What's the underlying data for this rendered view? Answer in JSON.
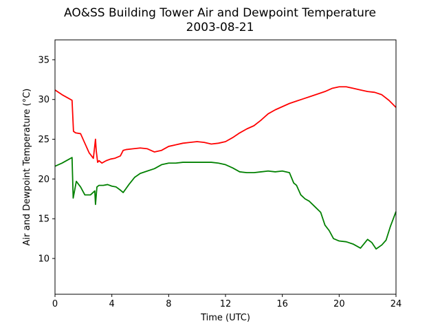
{
  "chart_data": {
    "type": "line",
    "title": "AO&SS Building Tower Air and Dewpoint Temperature",
    "subtitle": "2003-08-21",
    "xlabel": "Time (UTC)",
    "ylabel": "Air and Dewpoint Temperature (°C)",
    "xlim": [
      0,
      24
    ],
    "ylim": [
      5.5,
      37.5
    ],
    "xticks": [
      0,
      4,
      8,
      12,
      16,
      20,
      24
    ],
    "yticks": [
      10,
      15,
      20,
      25,
      30,
      35
    ],
    "grid": false,
    "legend": "none",
    "series": [
      {
        "color": "#ff0000",
        "x": [
          0,
          0.5,
          1.0,
          1.2,
          1.3,
          1.45,
          1.8,
          2.1,
          2.4,
          2.7,
          2.85,
          2.9,
          3.0,
          3.1,
          3.3,
          3.6,
          3.9,
          4.2,
          4.6,
          4.8,
          5.0,
          5.5,
          6.0,
          6.5,
          7.0,
          7.5,
          8.0,
          8.5,
          9.0,
          9.5,
          10.0,
          10.5,
          11.0,
          11.5,
          12.0,
          12.5,
          13.0,
          13.5,
          14.0,
          14.5,
          15.0,
          15.5,
          16.0,
          16.5,
          17.0,
          17.5,
          18.0,
          18.5,
          19.0,
          19.5,
          20.0,
          20.5,
          21.0,
          21.5,
          22.0,
          22.5,
          23.0,
          23.5,
          24.0
        ],
        "y": [
          31.2,
          30.6,
          30.1,
          29.9,
          26.0,
          25.8,
          25.7,
          24.5,
          23.3,
          22.6,
          25.0,
          23.6,
          22.1,
          22.3,
          22.0,
          22.3,
          22.5,
          22.6,
          22.9,
          23.6,
          23.7,
          23.8,
          23.9,
          23.8,
          23.4,
          23.6,
          24.1,
          24.3,
          24.5,
          24.6,
          24.7,
          24.6,
          24.4,
          24.5,
          24.7,
          25.2,
          25.8,
          26.3,
          26.7,
          27.4,
          28.2,
          28.7,
          29.1,
          29.5,
          29.8,
          30.1,
          30.4,
          30.7,
          31.0,
          31.4,
          31.6,
          31.6,
          31.4,
          31.2,
          31.0,
          30.9,
          30.6,
          29.9,
          29.0
        ]
      },
      {
        "color": "#008000",
        "x": [
          0,
          0.5,
          1.0,
          1.2,
          1.28,
          1.5,
          1.8,
          2.1,
          2.5,
          2.8,
          2.85,
          2.95,
          3.1,
          3.4,
          3.7,
          4.0,
          4.3,
          4.6,
          4.8,
          5.2,
          5.6,
          6.0,
          6.5,
          7.0,
          7.5,
          8.0,
          8.5,
          9.0,
          9.5,
          10.0,
          10.5,
          11.0,
          11.5,
          12.0,
          12.5,
          13.0,
          13.5,
          14.0,
          14.5,
          15.0,
          15.5,
          16.0,
          16.5,
          16.8,
          17.0,
          17.3,
          17.6,
          17.9,
          18.3,
          18.7,
          19.0,
          19.3,
          19.6,
          20.0,
          20.5,
          21.0,
          21.5,
          22.0,
          22.3,
          22.6,
          23.0,
          23.3,
          23.6,
          24.0
        ],
        "y": [
          21.6,
          22.0,
          22.5,
          22.7,
          17.6,
          19.7,
          19.0,
          18.0,
          18.0,
          18.5,
          16.8,
          19.0,
          19.2,
          19.2,
          19.3,
          19.1,
          19.0,
          18.6,
          18.3,
          19.3,
          20.2,
          20.7,
          21.0,
          21.3,
          21.8,
          22.0,
          22.0,
          22.1,
          22.1,
          22.1,
          22.1,
          22.1,
          22.0,
          21.8,
          21.4,
          20.9,
          20.8,
          20.8,
          20.9,
          21.0,
          20.9,
          21.0,
          20.8,
          19.5,
          19.2,
          18.0,
          17.5,
          17.2,
          16.5,
          15.8,
          14.2,
          13.5,
          12.5,
          12.2,
          12.1,
          11.8,
          11.3,
          12.4,
          12.0,
          11.2,
          11.7,
          12.3,
          14.0,
          15.9
        ]
      }
    ]
  }
}
